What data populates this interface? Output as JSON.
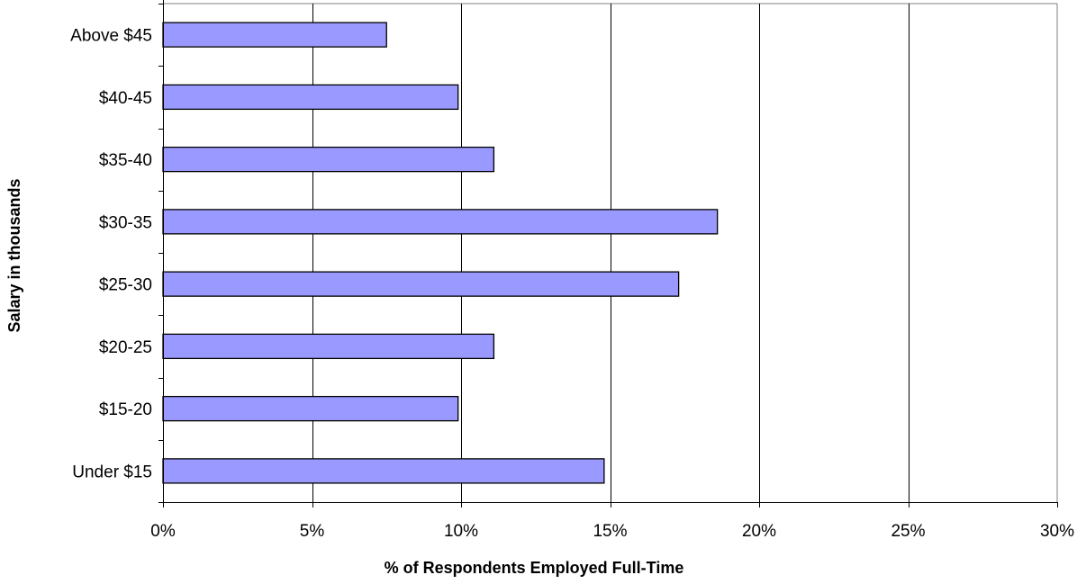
{
  "chart_data": {
    "type": "bar",
    "orientation": "horizontal",
    "categories": [
      "Under $15",
      "$15-20",
      "$20-25",
      "$25-30",
      "$30-35",
      "$35-40",
      "$40-45",
      "Above $45"
    ],
    "values": [
      14.8,
      9.9,
      11.1,
      17.3,
      18.6,
      11.1,
      9.9,
      7.5
    ],
    "value_unit": "percent",
    "xlabel": "% of Respondents Employed Full-Time",
    "ylabel": "Salary in thousands",
    "xlim": [
      0,
      30
    ],
    "x_ticks": [
      "0%",
      "5%",
      "10%",
      "15%",
      "20%",
      "25%",
      "30%"
    ],
    "x_tick_values": [
      0,
      5,
      10,
      15,
      20,
      25,
      30
    ],
    "grid": "vertical",
    "legend": "none",
    "colors": {
      "bar_fill": "#9999ff",
      "bar_stroke": "#000000",
      "grid": "#000000",
      "plot_border": "#808080"
    }
  }
}
